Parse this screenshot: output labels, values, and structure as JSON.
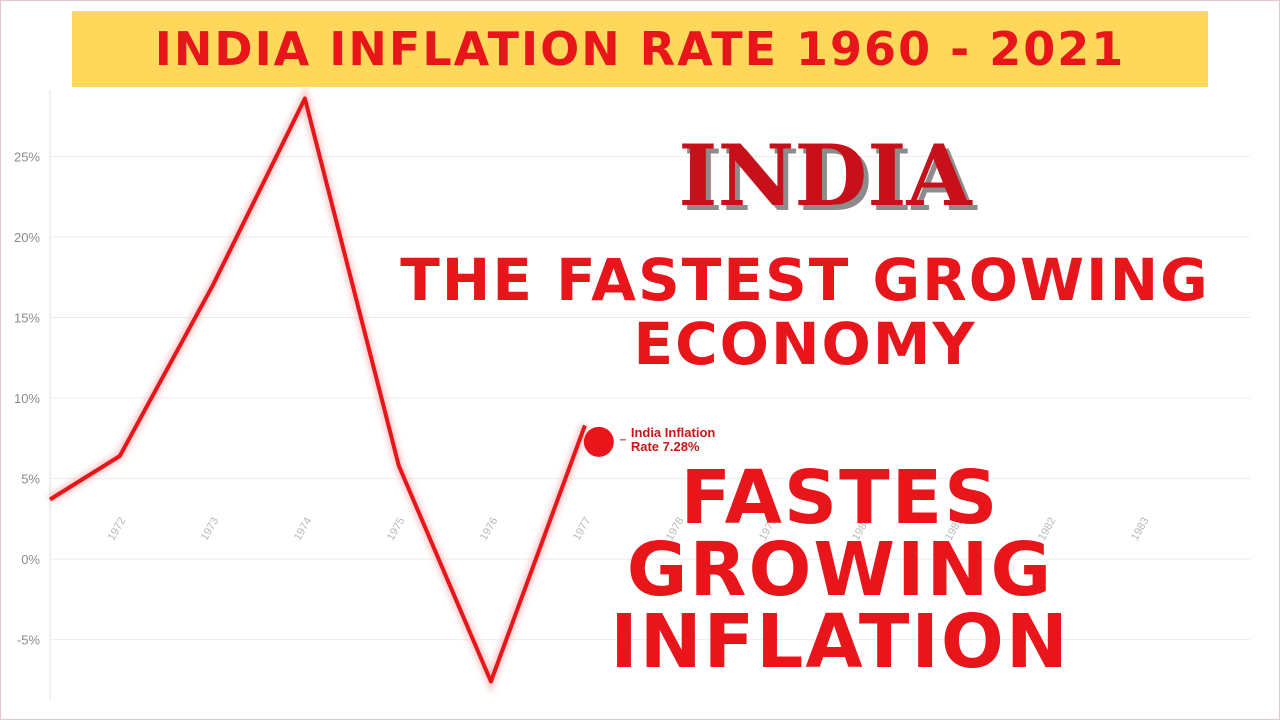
{
  "title": "INDIA INFLATION RATE 1960 - 2021",
  "headline": "INDIA",
  "tagline": [
    "THE FASTEST GROWING",
    "ECONOMY"
  ],
  "bottom_text": [
    "FASTES",
    "GROWING",
    "INFLATION"
  ],
  "colors": {
    "line": "#e8161b",
    "banner": "#fdd85a",
    "headline": "#c8101a"
  },
  "chart_data": {
    "type": "line",
    "x_ticks": [
      "1972",
      "1973",
      "1974",
      "1975",
      "1976",
      "1977",
      "1978",
      "1979",
      "1980",
      "1981",
      "1982",
      "1983"
    ],
    "y_ticks": [
      "-5%",
      "0%",
      "5%",
      "10%",
      "15%",
      "20%",
      "25%"
    ],
    "ylim": [
      -8.5,
      29.5
    ],
    "xlim": [
      1971.25,
      1984.15
    ],
    "series": [
      {
        "x": [
          1971.25,
          1972,
          1973,
          1973.99,
          1975,
          1975.99,
          1977
        ],
        "y": [
          3.7,
          6.4,
          17.0,
          28.6,
          5.8,
          -7.6,
          8.3
        ]
      }
    ],
    "current_point": {
      "x": 1977.15,
      "y": 7.28
    },
    "annotation": {
      "lines": [
        "India Inflation",
        "Rate 7.28%"
      ]
    },
    "grid": true
  }
}
